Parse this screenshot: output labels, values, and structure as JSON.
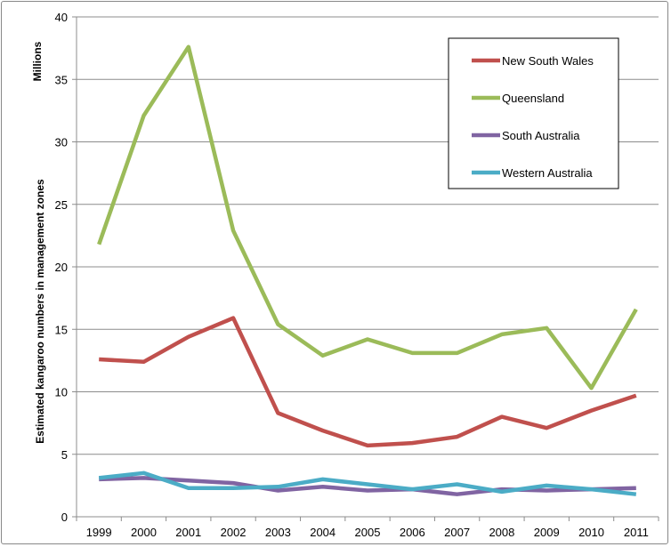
{
  "chart_data": {
    "type": "line",
    "title": "",
    "units_label": "Millions",
    "ylabel": "Estimated kangaroo numbers in management zones",
    "xlabel": "",
    "ylim": [
      0,
      40
    ],
    "yticks": [
      0,
      5,
      10,
      15,
      20,
      25,
      30,
      35,
      40
    ],
    "grid": "horizontal",
    "legend_position": "top-right",
    "categories": [
      "1999",
      "2000",
      "2001",
      "2002",
      "2003",
      "2004",
      "2005",
      "2006",
      "2007",
      "2008",
      "2009",
      "2010",
      "2011"
    ],
    "series": [
      {
        "name": "New South Wales",
        "color": "#c0504d",
        "values": [
          12.6,
          12.4,
          14.4,
          15.9,
          8.3,
          6.9,
          5.7,
          5.9,
          6.4,
          8.0,
          7.1,
          8.5,
          9.7
        ]
      },
      {
        "name": "Queensland",
        "color": "#9bbb59",
        "values": [
          21.8,
          32.1,
          37.6,
          22.9,
          15.4,
          12.9,
          14.2,
          13.1,
          13.1,
          14.6,
          15.1,
          10.3,
          16.6
        ]
      },
      {
        "name": "South Australia",
        "color": "#8064a2",
        "values": [
          3.0,
          3.1,
          2.9,
          2.7,
          2.1,
          2.4,
          2.1,
          2.2,
          1.8,
          2.2,
          2.1,
          2.2,
          2.3
        ]
      },
      {
        "name": "Western Australia",
        "color": "#4bacc6",
        "values": [
          3.1,
          3.5,
          2.3,
          2.3,
          2.4,
          3.0,
          2.6,
          2.2,
          2.6,
          2.0,
          2.5,
          2.2,
          1.8
        ]
      }
    ]
  }
}
